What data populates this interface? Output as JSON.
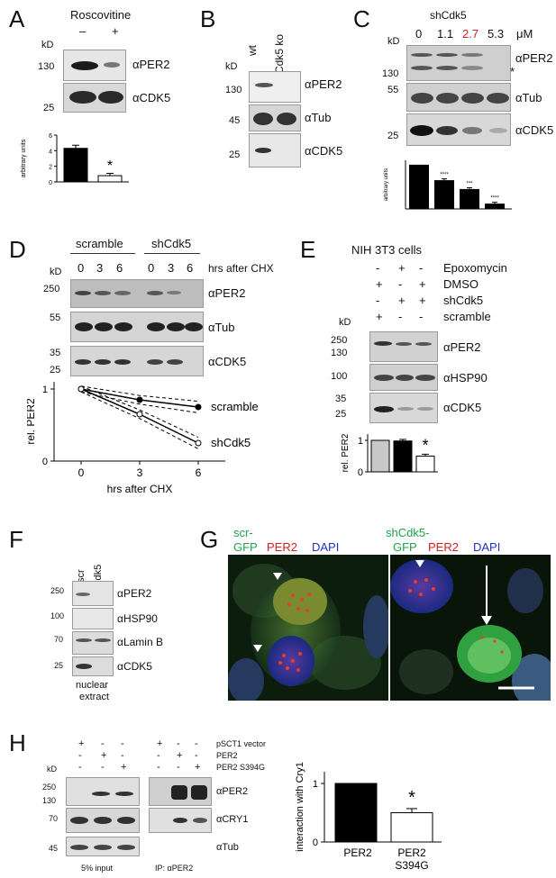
{
  "panelA": {
    "letter": "A",
    "title": "Roscovitine",
    "minus": "–",
    "plus": "+",
    "kd_unit": "kD",
    "kd_130": "130",
    "kd_25": "25",
    "ab1": "αPER2",
    "ab2": "αCDK5",
    "star": "*",
    "chart_data": {
      "type": "bar",
      "categories": [
        "–",
        "+"
      ],
      "values": [
        4.3,
        0.8
      ],
      "errors": [
        0.4,
        0.3
      ],
      "ylabel": "arbitrary units",
      "yticks": [
        "0",
        "2",
        "4",
        "6"
      ],
      "ylim": [
        0,
        6
      ]
    }
  },
  "panelB": {
    "letter": "B",
    "col_wt": "wt",
    "col_ko": "Cdk5 ko",
    "kd_unit": "kD",
    "kd_130": "130",
    "kd_45": "45",
    "kd_25": "25",
    "ab1": "αPER2",
    "ab2": "αTub",
    "ab3": "αCDK5"
  },
  "panelC": {
    "letter": "C",
    "title": "shCdk5",
    "kd_unit": "kD",
    "conc": [
      "0",
      "1.1",
      "2.7",
      "5.3"
    ],
    "conc_unit": "μM",
    "kd_130": "130",
    "kd_55": "55",
    "kd_25": "25",
    "ab1": "αPER2",
    "ab2": "αTub",
    "ab3": "αCDK5",
    "asterisk": "*",
    "chart_data": {
      "type": "bar",
      "categories": [
        "0",
        "1.1",
        "2.7",
        "5.3"
      ],
      "values": [
        1.0,
        0.65,
        0.45,
        0.12
      ],
      "errors": [
        0.0,
        0.03,
        0.03,
        0.03
      ],
      "significance": [
        "",
        "****",
        "***",
        "****"
      ],
      "ylabel": "arbitrary units",
      "ylim": [
        0,
        1.1
      ]
    }
  },
  "panelD": {
    "letter": "D",
    "group1": "scramble",
    "group2": "shCdk5",
    "times": [
      "0",
      "3",
      "6",
      "0",
      "3",
      "6"
    ],
    "cond": "hrs after CHX",
    "kd_unit": "kD",
    "kd_250": "250",
    "kd_55": "55",
    "kd_35": "35",
    "kd_25": "25",
    "ab1": "αPER2",
    "ab2": "αTub",
    "ab3": "αCDK5",
    "chart_data": {
      "type": "line",
      "x": [
        0,
        3,
        6
      ],
      "series": [
        {
          "name": "scramble",
          "values": [
            1.0,
            0.85,
            0.75
          ]
        },
        {
          "name": "shCdk5",
          "values": [
            1.0,
            0.65,
            0.25
          ]
        }
      ],
      "xticks": [
        "0",
        "3",
        "6"
      ],
      "yticks": [
        "0",
        "1"
      ],
      "xlabel": "hrs after CHX",
      "ylabel": "rel. PER2",
      "xlim": [
        0,
        6
      ],
      "ylim": [
        0,
        1.1
      ]
    }
  },
  "panelE": {
    "letter": "E",
    "cell": "NIH 3T3 cells",
    "rows": [
      {
        "signs": [
          "-",
          "+",
          "-"
        ],
        "label": "Epoxomycin"
      },
      {
        "signs": [
          "+",
          "-",
          "+"
        ],
        "label": "DMSO"
      },
      {
        "signs": [
          "-",
          "+",
          "+"
        ],
        "label": "shCdk5"
      },
      {
        "signs": [
          "+",
          "-",
          "-"
        ],
        "label": "scramble"
      }
    ],
    "kd_unit": "kD",
    "kd_250": "250",
    "kd_130": "130",
    "kd_100": "100",
    "kd_35": "35",
    "kd_25": "25",
    "ab1": "αPER2",
    "ab2": "αHSP90",
    "ab3": "αCDK5",
    "star": "*",
    "chart_data": {
      "type": "bar",
      "categories": [
        "scramble+DMSO",
        "shCdk5+Epoxomycin",
        "shCdk5+DMSO"
      ],
      "values": [
        1.0,
        0.98,
        0.5
      ],
      "errors": [
        0.0,
        0.05,
        0.06
      ],
      "colors": [
        "#c8c8c8",
        "#000000",
        "#ffffff"
      ],
      "ylabel": "rel. PER2",
      "yticks": [
        "0",
        "1"
      ],
      "ylim": [
        0,
        1.2
      ]
    }
  },
  "panelF": {
    "letter": "F",
    "col_scr": "scr",
    "col_sh": "shCdk5",
    "kd_250": "250",
    "kd_100": "100",
    "kd_70": "70",
    "kd_25": "25",
    "ab1": "αPER2",
    "ab2": "αHSP90",
    "ab3": "αLamin B",
    "ab4": "αCDK5",
    "cap1": "nuclear",
    "cap2": "extract"
  },
  "panelG": {
    "letter": "G",
    "left_label1": "scr-",
    "left_label2": "GFP",
    "per2": "PER2",
    "dapi": "DAPI",
    "right_label1": "shCdk5-",
    "right_label2": "GFP"
  },
  "panelH": {
    "letter": "H",
    "kd_unit": "kD",
    "rows": [
      {
        "signs": [
          "+",
          "-",
          "-",
          "+",
          "-",
          "-"
        ],
        "label": "pSCT1 vector"
      },
      {
        "signs": [
          "-",
          "+",
          "-",
          "-",
          "+",
          "-"
        ],
        "label": "PER2"
      },
      {
        "signs": [
          "-",
          "-",
          "+",
          "-",
          "-",
          "+"
        ],
        "label": "PER2 S394G"
      }
    ],
    "kd_250": "250",
    "kd_130": "130",
    "kd_70": "70",
    "kd_45": "45",
    "ab1": "αPER2",
    "ab2": "αCRY1",
    "ab3": "αTub",
    "cap_input": "5% input",
    "cap_ip": "IP: αPER2",
    "star": "*",
    "chart_data": {
      "type": "bar",
      "categories": [
        "PER2",
        "PER2 S394G"
      ],
      "values": [
        1.0,
        0.5
      ],
      "errors": [
        0.0,
        0.07
      ],
      "ylabel": "interaction with Cry1",
      "yticks": [
        "0",
        "1"
      ],
      "ylim": [
        0,
        1.2
      ]
    }
  },
  "colors": {
    "black_bar": "#000000",
    "grey_bar": "#c8c8c8",
    "red": "#d22020",
    "green": "#1fa24a",
    "blue": "#2030c0"
  }
}
